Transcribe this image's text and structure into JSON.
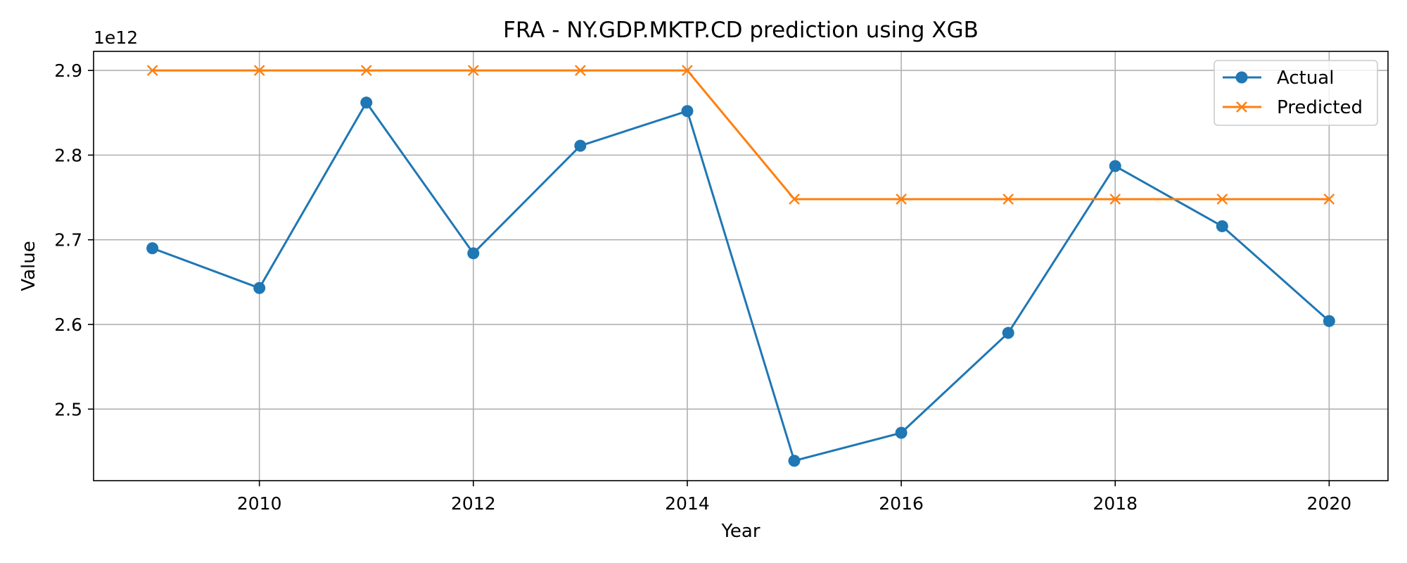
{
  "chart_data": {
    "type": "line",
    "title": "FRA - NY.GDP.MKTP.CD prediction using XGB",
    "xlabel": "Year",
    "ylabel": "Value",
    "y_offset_label": "1e12",
    "x": [
      2009,
      2010,
      2011,
      2012,
      2013,
      2014,
      2015,
      2016,
      2017,
      2018,
      2019,
      2020
    ],
    "xlim": [
      2008.45,
      2020.55
    ],
    "ylim": [
      2.4155,
      2.9225
    ],
    "y_scale": 1000000000000.0,
    "x_ticks": [
      2010,
      2012,
      2014,
      2016,
      2018,
      2020
    ],
    "y_ticks": [
      2.5,
      2.6,
      2.7,
      2.8,
      2.9
    ],
    "x_tick_labels": [
      "2010",
      "2012",
      "2014",
      "2016",
      "2018",
      "2020"
    ],
    "y_tick_labels": [
      "2.5",
      "2.6",
      "2.7",
      "2.8",
      "2.9"
    ],
    "grid": true,
    "legend_position": "top-right",
    "series": [
      {
        "name": "Actual",
        "color": "#1f77b4",
        "marker": "circle",
        "values": [
          2.69,
          2.643,
          2.862,
          2.684,
          2.811,
          2.852,
          2.439,
          2.472,
          2.59,
          2.787,
          2.716,
          2.604
        ]
      },
      {
        "name": "Predicted",
        "color": "#ff7f0e",
        "marker": "x",
        "values": [
          2.9,
          2.9,
          2.9,
          2.9,
          2.9,
          2.9,
          2.748,
          2.748,
          2.748,
          2.748,
          2.748,
          2.748
        ]
      }
    ]
  }
}
